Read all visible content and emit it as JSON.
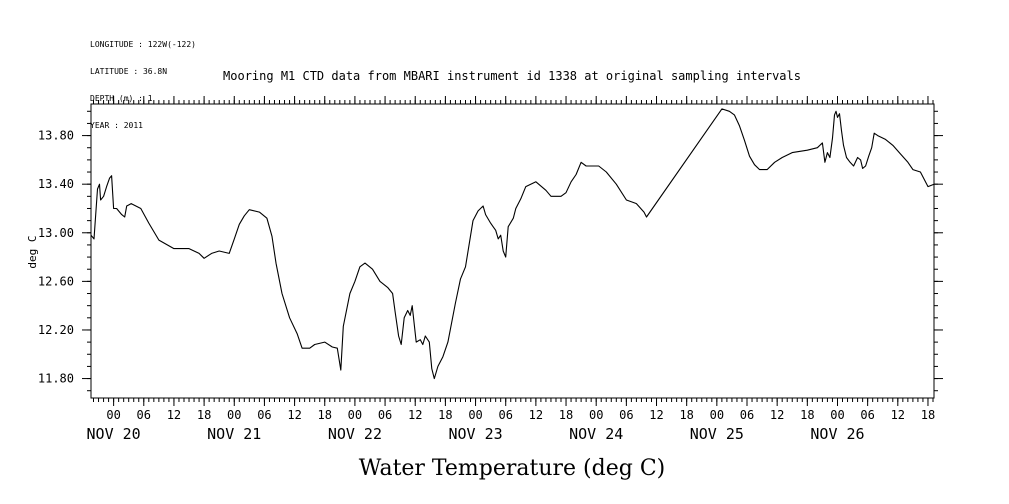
{
  "metadata": {
    "longitude": "LONGITUDE : 122W(-122)",
    "latitude": "LATITUDE : 36.8N",
    "depth": "DEPTH (m) : 1",
    "year": "YEAR : 2011"
  },
  "chart_data": {
    "type": "line",
    "title": "Mooring M1 CTD data from MBARI instrument id 1338 at original sampling intervals",
    "xlabel": "Water Temperature (deg C)",
    "ylabel": "deg C",
    "ylim": [
      11.64,
      14.06
    ],
    "yticks": [
      11.8,
      12.2,
      12.6,
      13.0,
      13.4,
      13.8
    ],
    "ytick_labels": [
      "11.80",
      "12.20",
      "12.60",
      "13.00",
      "13.40",
      "13.80"
    ],
    "x_unit": "hours since Nov 20 00:00",
    "xlim": [
      -4.5,
      163.2
    ],
    "xticks_hours": [
      0,
      6,
      12,
      18,
      24,
      30,
      36,
      42,
      48,
      54,
      60,
      66,
      72,
      78,
      84,
      90,
      96,
      102,
      108,
      114,
      120,
      126,
      132,
      138,
      144,
      150,
      156,
      162
    ],
    "xtick_hour_labels": [
      "00",
      "06",
      "12",
      "18",
      "00",
      "06",
      "12",
      "18",
      "00",
      "06",
      "12",
      "18",
      "00",
      "06",
      "12",
      "18",
      "00",
      "06",
      "12",
      "18",
      "00",
      "06",
      "12",
      "18",
      "00",
      "06",
      "12",
      "18"
    ],
    "day_labels": [
      {
        "hour": 0,
        "label": "NOV 20"
      },
      {
        "hour": 24,
        "label": "NOV 21"
      },
      {
        "hour": 48,
        "label": "NOV 22"
      },
      {
        "hour": 72,
        "label": "NOV 23"
      },
      {
        "hour": 96,
        "label": "NOV 24"
      },
      {
        "hour": 120,
        "label": "NOV 25"
      },
      {
        "hour": 144,
        "label": "NOV 26"
      }
    ],
    "grid": false,
    "series": [
      {
        "color": "#000000",
        "points": [
          [
            -4.5,
            12.98
          ],
          [
            -3.9,
            12.95
          ],
          [
            -3.2,
            13.36
          ],
          [
            -2.8,
            13.4
          ],
          [
            -2.6,
            13.27
          ],
          [
            -2.0,
            13.3
          ],
          [
            -1.4,
            13.38
          ],
          [
            -0.8,
            13.45
          ],
          [
            -0.4,
            13.47
          ],
          [
            0.0,
            13.2
          ],
          [
            0.6,
            13.2
          ],
          [
            1.6,
            13.15
          ],
          [
            2.2,
            13.13
          ],
          [
            2.6,
            13.22
          ],
          [
            3.5,
            13.24
          ],
          [
            5.4,
            13.2
          ],
          [
            7.0,
            13.08
          ],
          [
            9.0,
            12.94
          ],
          [
            12.0,
            12.87
          ],
          [
            15.0,
            12.87
          ],
          [
            17.0,
            12.83
          ],
          [
            18.0,
            12.79
          ],
          [
            19.5,
            12.83
          ],
          [
            21.0,
            12.85
          ],
          [
            23.0,
            12.83
          ],
          [
            24.0,
            12.95
          ],
          [
            25.0,
            13.07
          ],
          [
            26.0,
            13.14
          ],
          [
            27.0,
            13.19
          ],
          [
            29.0,
            13.17
          ],
          [
            30.5,
            13.12
          ],
          [
            31.5,
            12.97
          ],
          [
            32.3,
            12.75
          ],
          [
            33.5,
            12.5
          ],
          [
            35.0,
            12.3
          ],
          [
            36.5,
            12.17
          ],
          [
            37.5,
            12.05
          ],
          [
            39.0,
            12.05
          ],
          [
            40.0,
            12.08
          ],
          [
            42.0,
            12.1
          ],
          [
            43.5,
            12.06
          ],
          [
            44.5,
            12.05
          ],
          [
            45.2,
            11.87
          ],
          [
            45.7,
            12.23
          ],
          [
            47.0,
            12.5
          ],
          [
            48.0,
            12.6
          ],
          [
            49.0,
            12.72
          ],
          [
            50.0,
            12.75
          ],
          [
            51.5,
            12.7
          ],
          [
            53.0,
            12.6
          ],
          [
            54.5,
            12.55
          ],
          [
            55.5,
            12.5
          ],
          [
            56.0,
            12.35
          ],
          [
            56.7,
            12.15
          ],
          [
            57.2,
            12.08
          ],
          [
            57.8,
            12.3
          ],
          [
            58.5,
            12.36
          ],
          [
            59.0,
            12.32
          ],
          [
            59.4,
            12.4
          ],
          [
            59.8,
            12.25
          ],
          [
            60.2,
            12.1
          ],
          [
            61.0,
            12.12
          ],
          [
            61.5,
            12.08
          ],
          [
            62.0,
            12.15
          ],
          [
            62.8,
            12.1
          ],
          [
            63.3,
            11.88
          ],
          [
            63.8,
            11.8
          ],
          [
            64.5,
            11.9
          ],
          [
            65.5,
            11.98
          ],
          [
            66.5,
            12.1
          ],
          [
            68.0,
            12.42
          ],
          [
            69.0,
            12.62
          ],
          [
            70.0,
            12.72
          ],
          [
            71.5,
            13.1
          ],
          [
            72.5,
            13.18
          ],
          [
            73.5,
            13.22
          ],
          [
            74.0,
            13.15
          ],
          [
            75.0,
            13.08
          ],
          [
            75.5,
            13.05
          ],
          [
            76.0,
            13.02
          ],
          [
            76.5,
            12.95
          ],
          [
            77.0,
            12.98
          ],
          [
            77.5,
            12.85
          ],
          [
            78.0,
            12.8
          ],
          [
            78.5,
            13.05
          ],
          [
            79.5,
            13.12
          ],
          [
            80.0,
            13.2
          ],
          [
            81.0,
            13.28
          ],
          [
            82.0,
            13.38
          ],
          [
            84.0,
            13.42
          ],
          [
            86.0,
            13.35
          ],
          [
            87.0,
            13.3
          ],
          [
            89.0,
            13.3
          ],
          [
            90.0,
            13.33
          ],
          [
            91.0,
            13.42
          ],
          [
            92.0,
            13.48
          ],
          [
            93.0,
            13.58
          ],
          [
            94.0,
            13.55
          ],
          [
            96.5,
            13.55
          ],
          [
            98.0,
            13.5
          ],
          [
            100.0,
            13.4
          ],
          [
            102.0,
            13.27
          ],
          [
            104.0,
            13.24
          ],
          [
            105.5,
            13.17
          ],
          [
            106.0,
            13.13
          ],
          [
            121.0,
            14.02
          ],
          [
            122.5,
            14.0
          ],
          [
            123.5,
            13.97
          ],
          [
            124.5,
            13.88
          ],
          [
            125.5,
            13.76
          ],
          [
            126.5,
            13.63
          ],
          [
            127.5,
            13.56
          ],
          [
            128.5,
            13.52
          ],
          [
            130.0,
            13.52
          ],
          [
            131.5,
            13.58
          ],
          [
            133.0,
            13.62
          ],
          [
            135.0,
            13.66
          ],
          [
            138.0,
            13.68
          ],
          [
            140.0,
            13.7
          ],
          [
            141.0,
            13.74
          ],
          [
            141.5,
            13.58
          ],
          [
            142.0,
            13.66
          ],
          [
            142.5,
            13.62
          ],
          [
            143.0,
            13.78
          ],
          [
            143.4,
            13.97
          ],
          [
            143.7,
            14.0
          ],
          [
            144.0,
            13.95
          ],
          [
            144.4,
            13.98
          ],
          [
            144.8,
            13.84
          ],
          [
            145.2,
            13.72
          ],
          [
            145.8,
            13.62
          ],
          [
            146.5,
            13.58
          ],
          [
            147.2,
            13.55
          ],
          [
            148.0,
            13.62
          ],
          [
            148.6,
            13.6
          ],
          [
            149.0,
            13.53
          ],
          [
            149.6,
            13.55
          ],
          [
            150.2,
            13.63
          ],
          [
            150.8,
            13.7
          ],
          [
            151.3,
            13.82
          ],
          [
            152.0,
            13.8
          ],
          [
            153.5,
            13.77
          ],
          [
            155.0,
            13.72
          ],
          [
            156.5,
            13.65
          ],
          [
            158.0,
            13.58
          ],
          [
            159.0,
            13.52
          ],
          [
            160.5,
            13.5
          ],
          [
            162.0,
            13.38
          ],
          [
            163.2,
            13.4
          ]
        ]
      }
    ]
  }
}
